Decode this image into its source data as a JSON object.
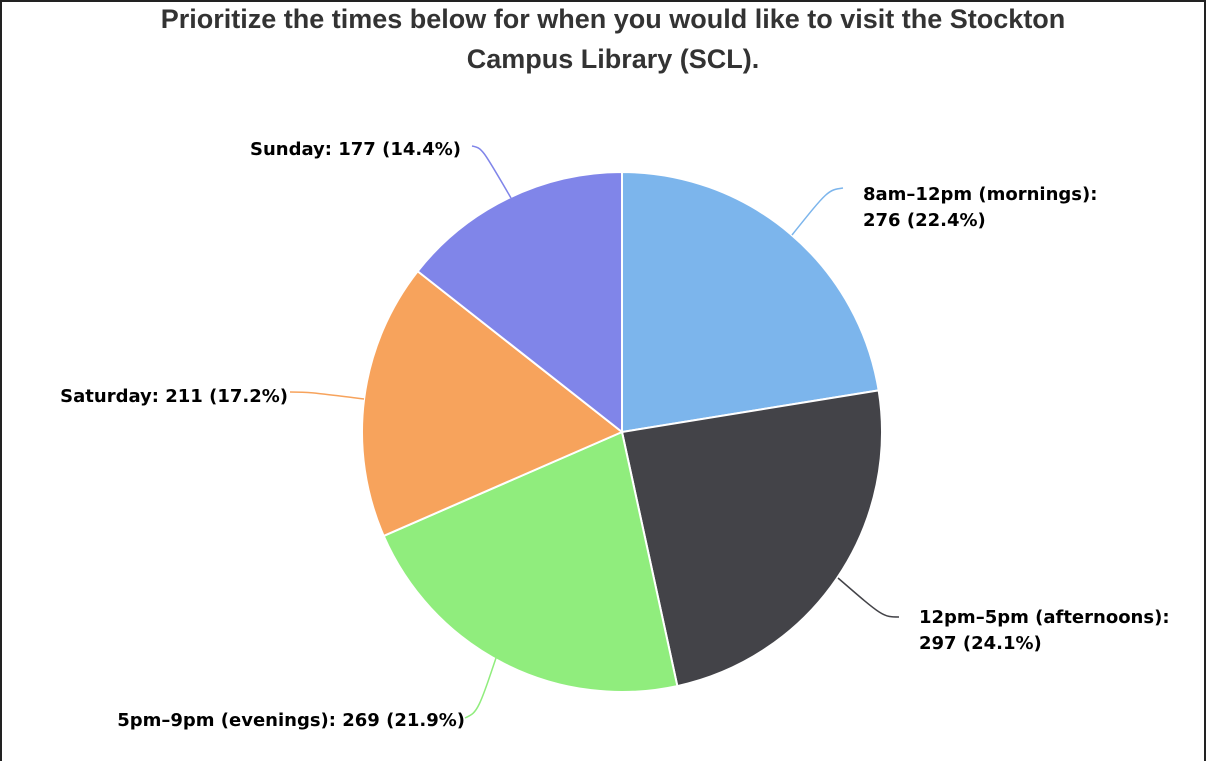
{
  "chart_data": {
    "type": "pie",
    "title_lines": [
      "Prioritize the times below for when you would like to visit the Stockton",
      "Campus Library (SCL)."
    ],
    "slices": [
      {
        "name": "8am-12pm (mornings)",
        "value": 276,
        "percent": 22.4,
        "color": "#7cb5ec",
        "label_lines": [
          "8am–12pm (mornings):",
          "276 (22.4%)"
        ]
      },
      {
        "name": "12pm-5pm (afternoons)",
        "value": 297,
        "percent": 24.1,
        "color": "#434348",
        "label_lines": [
          "12pm–5pm (afternoons):",
          "297 (24.1%)"
        ]
      },
      {
        "name": "5pm-9pm (evenings)",
        "value": 269,
        "percent": 21.9,
        "color": "#90ed7d",
        "label_lines": [
          "5pm–9pm (evenings): 269 (21.9%)"
        ]
      },
      {
        "name": "Saturday",
        "value": 211,
        "percent": 17.2,
        "color": "#f7a35c",
        "label_lines": [
          "Saturday: 211 (17.2%)"
        ]
      },
      {
        "name": "Sunday",
        "value": 177,
        "percent": 14.4,
        "color": "#8085e9",
        "label_lines": [
          "Sunday: 177 (14.4%)"
        ]
      }
    ]
  }
}
